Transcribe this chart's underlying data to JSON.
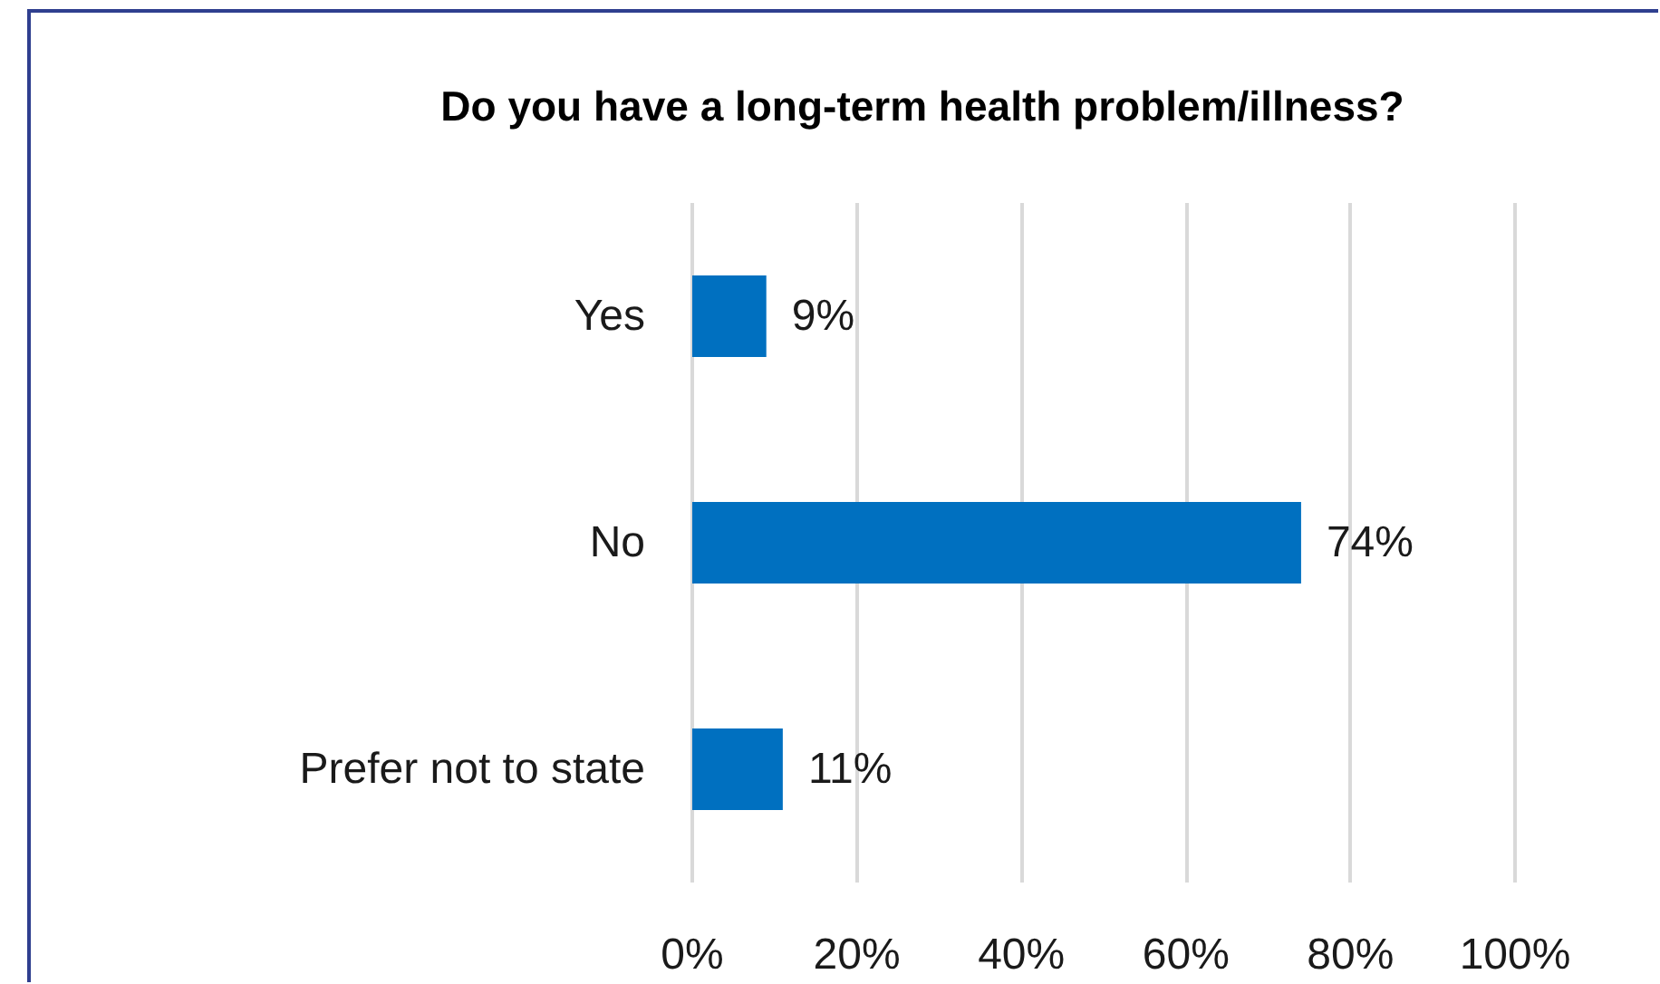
{
  "chart_data": {
    "type": "bar",
    "orientation": "horizontal",
    "title": "Do you have a long-term health problem/illness?",
    "categories": [
      "Yes",
      "No",
      "Prefer not to state"
    ],
    "values": [
      9,
      74,
      11
    ],
    "color": "#0070c0",
    "value_labels": [
      "9%",
      "74%",
      "11%"
    ],
    "xlim": [
      0,
      100
    ],
    "xticks": [
      {
        "value": 0,
        "label": "0%"
      },
      {
        "value": 20,
        "label": "20%"
      },
      {
        "value": 40,
        "label": "40%"
      },
      {
        "value": 60,
        "label": "60%"
      },
      {
        "value": 80,
        "label": "80%"
      },
      {
        "value": 100,
        "label": "100%"
      }
    ],
    "grid": "x"
  }
}
